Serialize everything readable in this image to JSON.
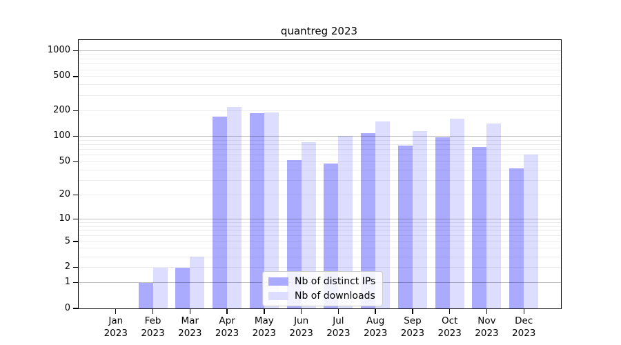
{
  "title": "quantreg 2023",
  "year": "2023",
  "colors": {
    "ips": "#aaaaff",
    "downloads": "#ddddff",
    "grid_major": "#bdbdbd",
    "grid_minor": "#ededed",
    "axis": "#000000"
  },
  "legend": {
    "items": [
      {
        "label": "Nb of distinct IPs",
        "color_key": "ips"
      },
      {
        "label": "Nb of downloads",
        "color_key": "downloads"
      }
    ],
    "position": "lower center"
  },
  "chart_data": {
    "type": "bar",
    "title": "quantreg 2023",
    "categories": [
      "Jan",
      "Feb",
      "Mar",
      "Apr",
      "May",
      "Jun",
      "Jul",
      "Aug",
      "Sep",
      "Oct",
      "Nov",
      "Dec"
    ],
    "category_year": "2023",
    "series": [
      {
        "name": "Nb of distinct IPs",
        "values": [
          0,
          1,
          2,
          170,
          185,
          52,
          48,
          108,
          78,
          97,
          75,
          42
        ]
      },
      {
        "name": "Nb of downloads",
        "values": [
          0,
          2,
          3,
          220,
          190,
          85,
          100,
          150,
          115,
          162,
          140,
          61
        ]
      }
    ],
    "yticks": [
      0,
      1,
      2,
      5,
      10,
      20,
      50,
      100,
      200,
      500,
      1000
    ],
    "ylim": [
      0,
      1000
    ],
    "yscale": "log10(1+x)",
    "grid": true,
    "legend_position": "lower center"
  }
}
